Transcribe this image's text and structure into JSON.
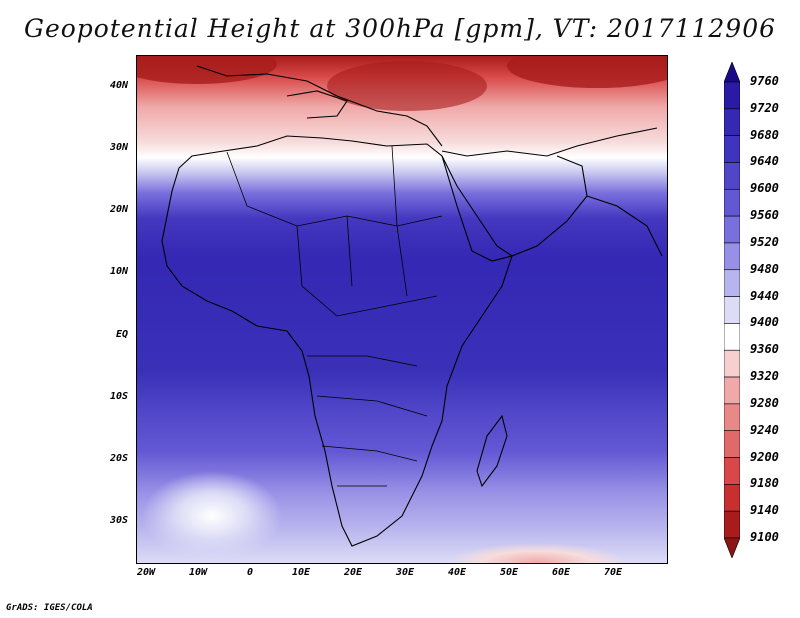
{
  "title": "Geopotential Height at 300hPa [gpm], VT: 2017112906",
  "lat_labels": [
    "40N",
    "30N",
    "20N",
    "10N",
    "EQ",
    "10S",
    "20S",
    "30S"
  ],
  "lon_labels": [
    "20W",
    "10W",
    "0",
    "10E",
    "20E",
    "30E",
    "40E",
    "50E",
    "60E",
    "70E"
  ],
  "colorbar": {
    "levels": [
      "9760",
      "9720",
      "9680",
      "9640",
      "9600",
      "9560",
      "9520",
      "9480",
      "9440",
      "9400",
      "9360",
      "9320",
      "9280",
      "9240",
      "9200",
      "9180",
      "9140",
      "9100"
    ],
    "colors": [
      "#1a0a88",
      "#2a1aa5",
      "#3428b4",
      "#3f34c0",
      "#5046c8",
      "#6358d4",
      "#7a70dd",
      "#9890e6",
      "#b8b4ee",
      "#dcdcf6",
      "#ffffff",
      "#f7cfcf",
      "#f0a8a8",
      "#e88888",
      "#e06a6a",
      "#d84848",
      "#c83030",
      "#a81c1c",
      "#8b1414"
    ]
  },
  "footer": "GrADS: IGES/COLA"
}
